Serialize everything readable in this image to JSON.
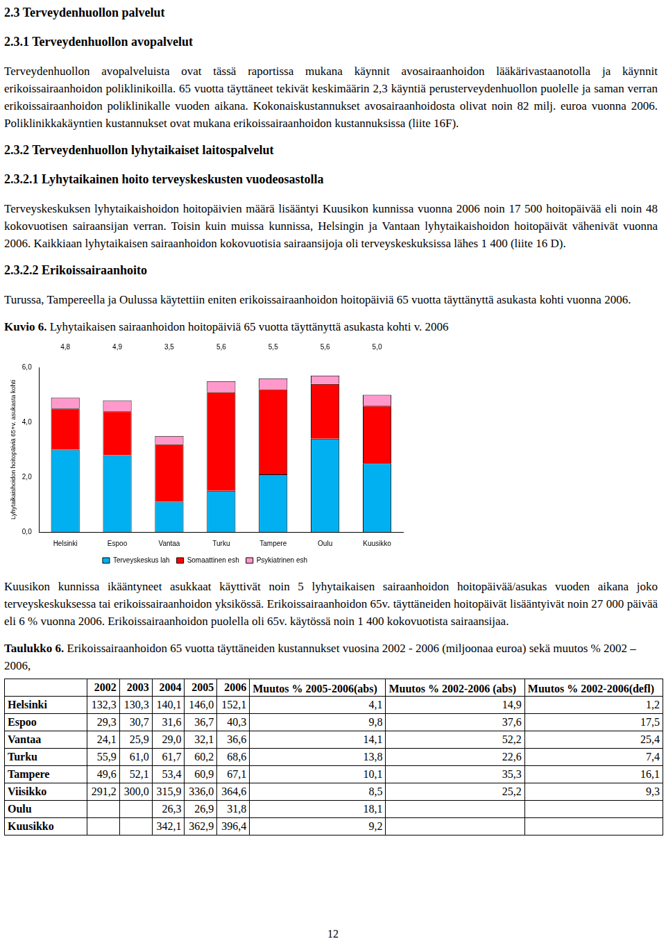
{
  "page": {
    "blocks": [
      {
        "kind": "heading",
        "text": "2.3 Terveydenhuollon palvelut"
      },
      {
        "kind": "heading",
        "text": "2.3.1 Terveydenhuollon avopalvelut"
      },
      {
        "kind": "paragraph",
        "text": "Terveydenhuollon avopalveluista ovat tässä raportissa mukana käynnit avosairaanhoidon lääkärivastaanotolla ja käynnit erikoissairaanhoidon poliklinikoilla. 65 vuotta täyttäneet tekivät keskimäärin 2,3 käyntiä perusterveydenhuollon puolelle ja saman verran erikoissairaanhoidon poliklinikalle vuoden aikana. Kokonaiskustannukset avosairaanhoidosta olivat noin 82 milj. euroa vuonna 2006. Poliklinikkakäyntien kustannukset ovat mukana erikoissairaanhoidon kustannuksissa (liite 16F)."
      },
      {
        "kind": "heading",
        "text": "2.3.2 Terveydenhuollon lyhytaikaiset laitospalvelut"
      },
      {
        "kind": "heading",
        "text": "2.3.2.1 Lyhytaikainen hoito terveyskeskusten vuodeosastolla"
      },
      {
        "kind": "paragraph",
        "text": "Terveyskeskuksen lyhytaikaishoidon hoitopäivien määrä lisääntyi Kuusikon kunnissa vuonna 2006 noin 17 500 hoitopäivää eli noin 48 kokovuotisen sairaansijan verran. Toisin kuin muissa kunnissa, Helsingin ja Vantaan lyhytaikaishoidon hoitopäivät vähenivät vuonna 2006. Kaikkiaan lyhytaikaisen sairaanhoidon kokovuotisia sairaansijoja oli terveyskeskuksissa lähes 1 400 (liite 16 D)."
      },
      {
        "kind": "heading",
        "text": "2.3.2.2 Erikoissairaanhoito"
      },
      {
        "kind": "paragraph",
        "text": "Turussa, Tampereella ja Oulussa käytettiin eniten erikoissairaanhoidon hoitopäiviä 65 vuotta täyttänyttä asukasta kohti vuonna 2006."
      },
      {
        "kind": "caption",
        "label": "Kuvio 6.",
        "text": "Lyhytaikaisen sairaanhoidon hoitopäiviä 65 vuotta täyttänyttä asukasta kohti v. 2006"
      },
      {
        "kind": "chart"
      },
      {
        "kind": "paragraph",
        "text": "Kuusikon kunnissa ikääntyneet asukkaat käyttivät noin 5 lyhytaikaisen sairaanhoidon hoitopäivää/asukas vuoden aikana joko terveyskeskuksessa tai erikoissairaanhoidon yksikössä. Erikoissairaanhoidon 65v. täyttäneiden hoitopäivät lisääntyivät noin 27 000 päivää eli 6 % vuonna 2006. Erikoissairaanhoidon puolella oli 65v. käytössä noin 1 400 kokovuotista sairaansijaa."
      },
      {
        "kind": "caption",
        "label": "Taulukko 6.",
        "text": "Erikoissairaanhoidon 65 vuotta täyttäneiden kustannukset vuosina 2002 - 2006 (miljoonaa euroa) sekä muutos % 2002 – 2006,"
      },
      {
        "kind": "table"
      }
    ],
    "page_number": "12"
  },
  "table": {
    "header": [
      null,
      "2002",
      "2003",
      "2004",
      "2005",
      "2006",
      "Muutos % 2005-2006(abs)",
      "Muutos % 2002-2006 (abs)",
      "Muutos % 2002-2006(defl)"
    ],
    "rows": [
      [
        "Helsinki",
        "132,3",
        "130,3",
        "140,1",
        "146,0",
        "152,1",
        "4,1",
        "14,9",
        "1,2"
      ],
      [
        "Espoo",
        "29,3",
        "30,7",
        "31,6",
        "36,7",
        "40,3",
        "9,8",
        "37,6",
        "17,5"
      ],
      [
        "Vantaa",
        "24,1",
        "25,9",
        "29,0",
        "32,1",
        "36,6",
        "14,1",
        "52,2",
        "25,4"
      ],
      [
        "Turku",
        "55,9",
        "61,0",
        "61,7",
        "60,2",
        "68,6",
        "13,8",
        "22,6",
        "7,4"
      ],
      [
        "Tampere",
        "49,6",
        "52,1",
        "53,4",
        "60,9",
        "67,1",
        "10,1",
        "35,3",
        "16,1"
      ],
      [
        "Viisikko",
        "291,2",
        "300,0",
        "315,9",
        "336,0",
        "364,6",
        "8,5",
        "25,2",
        "9,3"
      ],
      [
        "Oulu",
        null,
        null,
        "26,3",
        "26,9",
        "31,8",
        "18,1",
        null,
        null
      ],
      [
        "Kuusikko",
        null,
        null,
        "342,1",
        "362,9",
        "396,4",
        "9,2",
        null,
        null
      ]
    ]
  },
  "chart_data": {
    "type": "bar",
    "stacked": true,
    "categories": [
      "Helsinki",
      "Espoo",
      "Vantaa",
      "Turku",
      "Tampere",
      "Oulu",
      "Kuusikko"
    ],
    "series": [
      {
        "name": "Terveyskeskus lah",
        "color": "#00b0f0",
        "values": [
          3.0,
          2.8,
          1.1,
          1.5,
          2.1,
          3.4,
          2.5
        ]
      },
      {
        "name": "Somaattinen esh",
        "color": "#ff0000",
        "values": [
          1.5,
          1.6,
          2.1,
          3.6,
          3.1,
          2.0,
          2.1
        ]
      },
      {
        "name": "Psykiatrinen esh",
        "color": "#ff99cc",
        "values": [
          0.4,
          0.4,
          0.3,
          0.4,
          0.4,
          0.3,
          0.4
        ]
      }
    ],
    "totals": {
      "values": [
        4.8,
        4.9,
        3.5,
        5.6,
        5.5,
        5.6,
        5.0
      ],
      "value_labels": [
        "4,8",
        "4,9",
        "3,5",
        "5,6",
        "5,5",
        "5,6",
        "5,0"
      ]
    },
    "y_label": "Lyhytaikaishoidon hoitopäiviä 65+v. asukasta kohti",
    "ylim": [
      0,
      6
    ],
    "yticks": [
      {
        "value": 0,
        "label": "0,0"
      },
      {
        "value": 2,
        "label": "2,0"
      },
      {
        "value": 4,
        "label": "4,0"
      },
      {
        "value": 6,
        "label": "6,0"
      }
    ],
    "grid": false,
    "legend": "bottom"
  }
}
